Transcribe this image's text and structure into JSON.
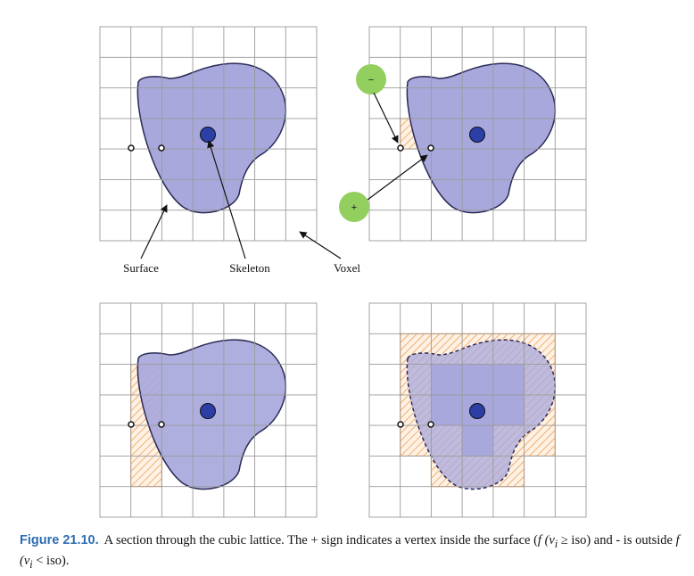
{
  "labels": {
    "surface": "Surface",
    "skeleton": "Skeleton",
    "voxel": "Voxel",
    "minus_sign": "−",
    "plus_sign": "+"
  },
  "caption": {
    "label": "Figure 21.10.",
    "text_1": "A section through the cubic lattice. The + sign indicates a vertex inside the surface (",
    "math_inside": "f (v",
    "math_inside_sub": "i",
    "math_inside_rel": " ≥ iso)",
    "text_2": " and - is outside ",
    "math_outside": "f (v",
    "math_outside_sub": "i",
    "math_outside_rel": " < iso).",
    "text_end": ""
  },
  "colors": {
    "surface_fill": "#a8a8dc",
    "surface_stroke": "#2a2a55",
    "skeleton_fill": "#2b3fa6",
    "grid_line": "#9a9a9a",
    "hatch": "#f0a050",
    "sign_circle": "#92cf5f",
    "caption_label": "#2d6db3"
  },
  "icons": [
    "minus-sign-circle-icon",
    "plus-sign-circle-icon",
    "skeleton-point-icon",
    "vertex-point-icon"
  ]
}
